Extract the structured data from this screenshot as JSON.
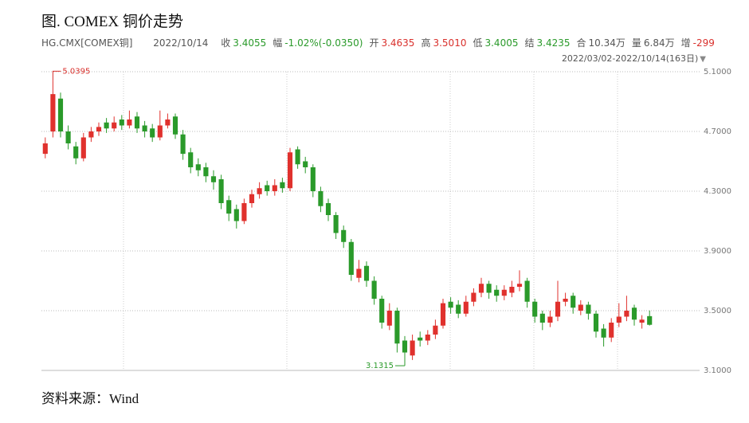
{
  "chart_data": {
    "type": "candlestick",
    "title": "图. COMEX 铜价走势",
    "symbol": "HG.CMX[COMEX铜]",
    "date": "2022/10/14",
    "info": [
      {
        "label": "收",
        "value": "3.4055",
        "color": "#2a9a2a"
      },
      {
        "label": "幅",
        "value": "-1.02%(-0.0350)",
        "color": "#2a9a2a"
      },
      {
        "label": "开",
        "value": "3.4635",
        "color": "#d9302c"
      },
      {
        "label": "高",
        "value": "3.5010",
        "color": "#d9302c"
      },
      {
        "label": "低",
        "value": "3.4005",
        "color": "#2a9a2a"
      },
      {
        "label": "结",
        "value": "3.4235",
        "color": "#2a9a2a"
      },
      {
        "label": "合",
        "value": "10.34万",
        "color": "#555555"
      },
      {
        "label": "量",
        "value": "6.84万",
        "color": "#555555"
      },
      {
        "label": "增",
        "value": "-299",
        "color": "#d9302c"
      }
    ],
    "range_label": "2022/03/02-2022/10/14(163日)",
    "source": "资料来源：Wind",
    "up_color": "#e0312d",
    "down_color": "#2a9a2a",
    "open": [
      4.55,
      4.7,
      4.92,
      4.7,
      4.6,
      4.52,
      4.66,
      4.7,
      4.76,
      4.72,
      4.78,
      4.74,
      4.8,
      4.74,
      4.72,
      4.66,
      4.74,
      4.8,
      4.68,
      4.56,
      4.48,
      4.46,
      4.4,
      4.38,
      4.24,
      4.18,
      4.1,
      4.22,
      4.28,
      4.34,
      4.3,
      4.36,
      4.32,
      4.58,
      4.5,
      4.46,
      4.3,
      4.22,
      4.14,
      4.04,
      3.96,
      3.72,
      3.8,
      3.7,
      3.58,
      3.4,
      3.5,
      3.3,
      3.2,
      3.32,
      3.3,
      3.34,
      3.4,
      3.56,
      3.54,
      3.48,
      3.56,
      3.62,
      3.68,
      3.64,
      3.6,
      3.62,
      3.66,
      3.7,
      3.56,
      3.48,
      3.42,
      3.46,
      3.56,
      3.6,
      3.5,
      3.54,
      3.48,
      3.38,
      3.32,
      3.42,
      3.46,
      3.52,
      3.42,
      3.4635
    ],
    "high": [
      4.66,
      5.0395,
      4.96,
      4.74,
      4.63,
      4.69,
      4.73,
      4.76,
      4.79,
      4.8,
      4.81,
      4.84,
      4.83,
      4.77,
      4.75,
      4.84,
      4.82,
      4.82,
      4.71,
      4.59,
      4.52,
      4.49,
      4.44,
      4.41,
      4.27,
      4.21,
      4.25,
      4.31,
      4.36,
      4.37,
      4.38,
      4.39,
      4.59,
      4.6,
      4.53,
      4.48,
      4.33,
      4.25,
      4.16,
      4.07,
      3.98,
      3.84,
      3.83,
      3.73,
      3.6,
      3.55,
      3.52,
      3.33,
      3.34,
      3.36,
      3.37,
      3.44,
      3.58,
      3.59,
      3.57,
      3.6,
      3.65,
      3.72,
      3.7,
      3.67,
      3.67,
      3.7,
      3.77,
      3.72,
      3.58,
      3.5,
      3.5,
      3.7,
      3.62,
      3.62,
      3.57,
      3.56,
      3.5,
      3.41,
      3.45,
      3.55,
      3.6,
      3.54,
      3.47,
      3.501
    ],
    "low": [
      4.52,
      4.66,
      4.66,
      4.58,
      4.48,
      4.5,
      4.63,
      4.67,
      4.69,
      4.7,
      4.71,
      4.72,
      4.69,
      4.66,
      4.63,
      4.64,
      4.72,
      4.65,
      4.51,
      4.42,
      4.4,
      4.36,
      4.31,
      4.18,
      4.1,
      4.05,
      4.08,
      4.19,
      4.25,
      4.27,
      4.27,
      4.29,
      4.3,
      4.45,
      4.42,
      4.26,
      4.16,
      4.1,
      3.98,
      3.92,
      3.7,
      3.69,
      3.66,
      3.54,
      3.38,
      3.37,
      3.22,
      3.1315,
      3.17,
      3.26,
      3.27,
      3.31,
      3.38,
      3.48,
      3.45,
      3.46,
      3.53,
      3.59,
      3.58,
      3.56,
      3.57,
      3.59,
      3.63,
      3.52,
      3.42,
      3.37,
      3.39,
      3.43,
      3.53,
      3.48,
      3.47,
      3.44,
      3.32,
      3.26,
      3.29,
      3.39,
      3.43,
      3.4,
      3.38,
      3.4005
    ],
    "close": [
      4.62,
      4.95,
      4.7,
      4.62,
      4.52,
      4.66,
      4.7,
      4.73,
      4.72,
      4.76,
      4.74,
      4.78,
      4.72,
      4.7,
      4.66,
      4.74,
      4.78,
      4.68,
      4.55,
      4.46,
      4.44,
      4.4,
      4.36,
      4.22,
      4.15,
      4.1,
      4.22,
      4.28,
      4.32,
      4.3,
      4.34,
      4.32,
      4.56,
      4.48,
      4.46,
      4.3,
      4.2,
      4.14,
      4.02,
      3.96,
      3.74,
      3.78,
      3.7,
      3.58,
      3.42,
      3.5,
      3.28,
      3.22,
      3.3,
      3.3,
      3.34,
      3.4,
      3.55,
      3.52,
      3.48,
      3.56,
      3.62,
      3.68,
      3.62,
      3.6,
      3.64,
      3.66,
      3.68,
      3.56,
      3.46,
      3.42,
      3.46,
      3.56,
      3.58,
      3.52,
      3.54,
      3.48,
      3.36,
      3.32,
      3.42,
      3.46,
      3.5,
      3.44,
      3.44,
      3.4055
    ],
    "max_label": 5.0395,
    "min_label": 3.1315,
    "annotation_color_max": "#d9302c",
    "annotation_color_min": "#2a9a2a",
    "ylim": [
      3.1,
      5.1
    ],
    "yticks": [
      {
        "value": 3.1,
        "label": "3.1000"
      },
      {
        "value": 3.5,
        "label": "3.5000"
      },
      {
        "value": 3.9,
        "label": "3.9000"
      },
      {
        "value": 4.3,
        "label": "4.3000"
      },
      {
        "value": 4.7,
        "label": "4.7000"
      },
      {
        "value": 5.1,
        "label": "5.1000"
      }
    ],
    "grid": true
  }
}
